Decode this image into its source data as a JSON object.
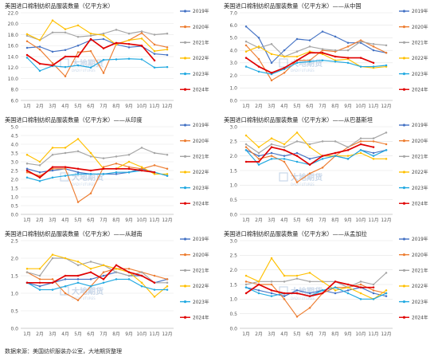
{
  "footer": "数据来源：美国纺织服装办公室，大地期货整理",
  "colors": {
    "2019年": "#4472C4",
    "2020年": "#ED7D31",
    "2021年": "#A5A5A5",
    "2022年": "#FFC000",
    "2023年": "#21A9E1",
    "2024年": "#E00000"
  },
  "watermark": "大地期货",
  "watermark_sub": "DADI FUTURES",
  "chart_data": [
    {
      "type": "line",
      "title": "美国进口棉制纺织品服装数量（亿平方米）",
      "categories": [
        "1月",
        "2月",
        "3月",
        "4月",
        "5月",
        "6月",
        "7月",
        "8月",
        "9月",
        "10月",
        "11月",
        "12月"
      ],
      "yticks": [
        "6.0",
        "8.0",
        "10.0",
        "12.0",
        "14.0",
        "16.0",
        "18.0",
        "20.0",
        "22.0"
      ],
      "ylim": [
        6,
        22
      ],
      "legend": "right",
      "series": [
        {
          "name": "2019年",
          "values": [
            15.6,
            15.8,
            14.9,
            15.2,
            16.0,
            17.0,
            17.2,
            16.2,
            15.7,
            15.9,
            14.5,
            14.3
          ]
        },
        {
          "name": "2020年",
          "values": [
            16.8,
            15.3,
            12.8,
            10.4,
            14.8,
            15.0,
            11.0,
            16.3,
            17.0,
            18.3,
            16.2,
            15.7
          ]
        },
        {
          "name": "2021年",
          "values": [
            17.8,
            17.0,
            18.4,
            18.4,
            17.6,
            17.8,
            18.2,
            18.9,
            18.2,
            18.6,
            18.0,
            18.2
          ]
        },
        {
          "name": "2022年",
          "values": [
            18.1,
            17.0,
            20.6,
            19.0,
            19.7,
            18.2,
            17.9,
            16.2,
            17.0,
            17.3,
            15.0,
            15.3
          ]
        },
        {
          "name": "2023年",
          "values": [
            13.8,
            11.4,
            12.3,
            12.1,
            12.4,
            12.0,
            13.4,
            13.5,
            13.6,
            13.5,
            12.0,
            12.1
          ]
        },
        {
          "name": "2024年",
          "values": [
            14.3,
            12.7,
            12.4,
            14.0,
            14.0,
            17.2,
            15.5,
            16.5,
            16.3,
            16.0,
            13.3,
            null
          ]
        }
      ]
    },
    {
      "type": "line",
      "title": "美国进口棉制纺织品服装数量（亿平方米）——从中国",
      "categories": [
        "1月",
        "2月",
        "3月",
        "4月",
        "5月",
        "6月",
        "7月",
        "8月",
        "9月",
        "10月",
        "11月",
        "12月"
      ],
      "yticks": [
        "0.0",
        "1.0",
        "2.0",
        "3.0",
        "4.0",
        "5.0",
        "6.0",
        "7.0"
      ],
      "ylim": [
        0,
        7
      ],
      "legend": "right",
      "series": [
        {
          "name": "2019年",
          "values": [
            5.9,
            5.0,
            3.0,
            4.0,
            4.9,
            4.8,
            5.5,
            5.1,
            4.6,
            4.6,
            4.0,
            3.8
          ]
        },
        {
          "name": "2020年",
          "values": [
            4.4,
            3.3,
            1.6,
            2.2,
            3.2,
            3.2,
            4.0,
            3.9,
            4.3,
            4.8,
            4.3,
            3.8
          ]
        },
        {
          "name": "2021年",
          "values": [
            4.7,
            4.2,
            4.5,
            3.5,
            3.9,
            4.3,
            4.1,
            4.0,
            4.0,
            4.7,
            4.5,
            4.4
          ]
        },
        {
          "name": "2022年",
          "values": [
            3.9,
            4.3,
            3.7,
            3.5,
            3.5,
            3.9,
            3.7,
            3.2,
            3.3,
            2.7,
            2.6,
            2.7
          ]
        },
        {
          "name": "2023年",
          "values": [
            2.7,
            2.3,
            2.1,
            2.5,
            3.0,
            3.1,
            3.2,
            3.1,
            3.0,
            2.7,
            2.7,
            2.8
          ]
        },
        {
          "name": "2024年",
          "values": [
            3.4,
            2.7,
            2.2,
            2.6,
            3.2,
            3.8,
            3.8,
            3.5,
            3.4,
            3.4,
            3.0,
            null
          ]
        }
      ]
    },
    {
      "type": "line",
      "title": "美国进口棉制纺织品服装数量（亿平方米）——从印度",
      "categories": [
        "1月",
        "2月",
        "3月",
        "4月",
        "5月",
        "6月",
        "7月",
        "8月",
        "9月",
        "10月",
        "11月",
        "12月"
      ],
      "yticks": [
        "0.0",
        "0.5",
        "1.0",
        "1.5",
        "2.0",
        "2.5",
        "3.0",
        "3.5",
        "4.0",
        "4.5",
        "5.0"
      ],
      "ylim": [
        0,
        5
      ],
      "legend": "right",
      "series": [
        {
          "name": "2019年",
          "values": [
            2.6,
            2.4,
            2.5,
            2.6,
            2.4,
            2.3,
            2.3,
            2.3,
            2.4,
            2.6,
            2.4,
            2.2
          ]
        },
        {
          "name": "2020年",
          "values": [
            2.4,
            2.2,
            2.6,
            2.6,
            0.7,
            1.2,
            2.7,
            2.9,
            2.7,
            2.6,
            2.8,
            2.6
          ]
        },
        {
          "name": "2021年",
          "values": [
            2.9,
            2.8,
            3.4,
            3.5,
            3.6,
            3.3,
            3.2,
            3.3,
            3.4,
            3.8,
            3.5,
            3.4
          ]
        },
        {
          "name": "2022年",
          "values": [
            3.4,
            3.0,
            3.8,
            3.8,
            4.3,
            3.5,
            2.6,
            2.6,
            3.0,
            2.7,
            2.3,
            2.3
          ]
        },
        {
          "name": "2023年",
          "values": [
            2.1,
            1.9,
            2.1,
            2.2,
            2.3,
            2.3,
            2.3,
            2.4,
            2.4,
            2.5,
            2.4,
            2.2
          ]
        },
        {
          "name": "2024年",
          "values": [
            2.5,
            2.1,
            2.7,
            2.7,
            2.6,
            2.5,
            2.6,
            2.6,
            2.6,
            2.5,
            2.4,
            null
          ]
        }
      ]
    },
    {
      "type": "line",
      "title": "美国进口棉制纺织品服装数量（亿平方米）——从巴基斯坦",
      "categories": [
        "1月",
        "2月",
        "3月",
        "4月",
        "5月",
        "6月",
        "7月",
        "8月",
        "9月",
        "10月",
        "11月",
        "12月"
      ],
      "yticks": [
        "0.0",
        "0.5",
        "1.0",
        "1.5",
        "2.0",
        "2.5",
        "3.0"
      ],
      "ylim": [
        0,
        3
      ],
      "legend": "right",
      "series": [
        {
          "name": "2019年",
          "values": [
            2.2,
            2.0,
            2.1,
            2.0,
            2.1,
            1.9,
            2.0,
            2.0,
            1.9,
            2.2,
            2.1,
            2.2
          ]
        },
        {
          "name": "2020年",
          "values": [
            2.3,
            1.9,
            2.0,
            1.8,
            1.1,
            1.4,
            1.6,
            2.0,
            2.3,
            2.5,
            2.5,
            2.4
          ]
        },
        {
          "name": "2021年",
          "values": [
            2.4,
            2.1,
            2.4,
            2.3,
            2.5,
            2.4,
            2.5,
            2.5,
            2.3,
            2.6,
            2.6,
            2.8
          ]
        },
        {
          "name": "2022年",
          "values": [
            2.7,
            2.3,
            2.6,
            2.4,
            2.8,
            2.3,
            2.0,
            2.0,
            2.0,
            2.1,
            1.9,
            1.9
          ]
        },
        {
          "name": "2023年",
          "values": [
            2.2,
            1.7,
            1.9,
            1.9,
            1.8,
            1.7,
            1.9,
            2.0,
            1.9,
            2.2,
            2.0,
            2.2
          ]
        },
        {
          "name": "2024年",
          "values": [
            1.8,
            1.8,
            2.3,
            2.2,
            2.0,
            1.7,
            2.0,
            2.1,
            2.2,
            2.4,
            2.3,
            null
          ]
        }
      ]
    },
    {
      "type": "line",
      "title": "美国进口棉制纺织品服装数量（亿平方米）——从越南",
      "categories": [
        "1月",
        "2月",
        "3月",
        "4月",
        "5月",
        "6月",
        "7月",
        "8月",
        "9月",
        "10月",
        "11月",
        "12月"
      ],
      "yticks": [
        "0.0",
        "0.5",
        "1.0",
        "1.5",
        "2.0",
        "2.5"
      ],
      "ylim": [
        0,
        2.5
      ],
      "legend": "right",
      "series": [
        {
          "name": "2019年",
          "values": [
            1.3,
            1.2,
            1.3,
            1.4,
            1.4,
            1.4,
            1.5,
            1.6,
            1.5,
            1.5,
            1.3,
            1.4
          ]
        },
        {
          "name": "2020年",
          "values": [
            1.6,
            1.4,
            1.4,
            1.0,
            0.8,
            1.2,
            1.6,
            1.7,
            1.7,
            1.6,
            1.5,
            1.4
          ]
        },
        {
          "name": "2021年",
          "values": [
            1.6,
            1.5,
            2.0,
            2.0,
            1.8,
            1.9,
            1.8,
            1.6,
            1.5,
            1.6,
            1.3,
            1.3
          ]
        },
        {
          "name": "2022年",
          "values": [
            1.7,
            1.7,
            2.1,
            2.0,
            1.9,
            1.7,
            1.8,
            1.7,
            1.6,
            1.3,
            0.9,
            1.2
          ]
        },
        {
          "name": "2023年",
          "values": [
            1.3,
            1.1,
            1.1,
            1.2,
            1.3,
            1.2,
            1.3,
            1.4,
            1.4,
            1.2,
            1.1,
            1.1
          ]
        },
        {
          "name": "2024年",
          "values": [
            1.3,
            1.3,
            1.3,
            1.5,
            1.5,
            1.6,
            1.4,
            1.8,
            1.6,
            1.5,
            1.3,
            null
          ]
        }
      ]
    },
    {
      "type": "line",
      "title": "美国进口棉制纺织品服装数量（亿平方米）——从孟加拉",
      "categories": [
        "1月",
        "2月",
        "3月",
        "4月",
        "5月",
        "6月",
        "7月",
        "8月",
        "9月",
        "10月",
        "11月",
        "12月"
      ],
      "yticks": [
        "0.0",
        "0.5",
        "1.0",
        "1.5",
        "2.0",
        "2.5",
        "3.0"
      ],
      "ylim": [
        0,
        3
      ],
      "legend": "right",
      "series": [
        {
          "name": "2019年",
          "values": [
            1.4,
            1.3,
            1.2,
            1.1,
            1.3,
            1.2,
            1.3,
            1.2,
            1.3,
            1.4,
            1.2,
            1.1
          ]
        },
        {
          "name": "2020年",
          "values": [
            1.6,
            1.5,
            1.5,
            1.0,
            0.4,
            0.7,
            1.2,
            1.4,
            1.4,
            1.5,
            1.3,
            1.2
          ]
        },
        {
          "name": "2021年",
          "values": [
            1.5,
            1.6,
            1.6,
            1.6,
            1.7,
            1.6,
            1.6,
            1.6,
            1.4,
            1.6,
            1.5,
            1.9
          ]
        },
        {
          "name": "2022年",
          "values": [
            1.8,
            1.6,
            2.4,
            1.8,
            1.8,
            1.9,
            1.6,
            1.3,
            1.4,
            1.2,
            1.0,
            1.3
          ]
        },
        {
          "name": "2023年",
          "values": [
            1.4,
            1.2,
            1.1,
            1.2,
            1.2,
            1.1,
            1.3,
            1.4,
            1.2,
            1.0,
            1.0,
            1.2
          ]
        },
        {
          "name": "2024年",
          "values": [
            1.2,
            1.5,
            1.3,
            1.2,
            1.2,
            1.1,
            1.2,
            1.6,
            1.5,
            1.4,
            1.4,
            null
          ]
        }
      ]
    }
  ]
}
